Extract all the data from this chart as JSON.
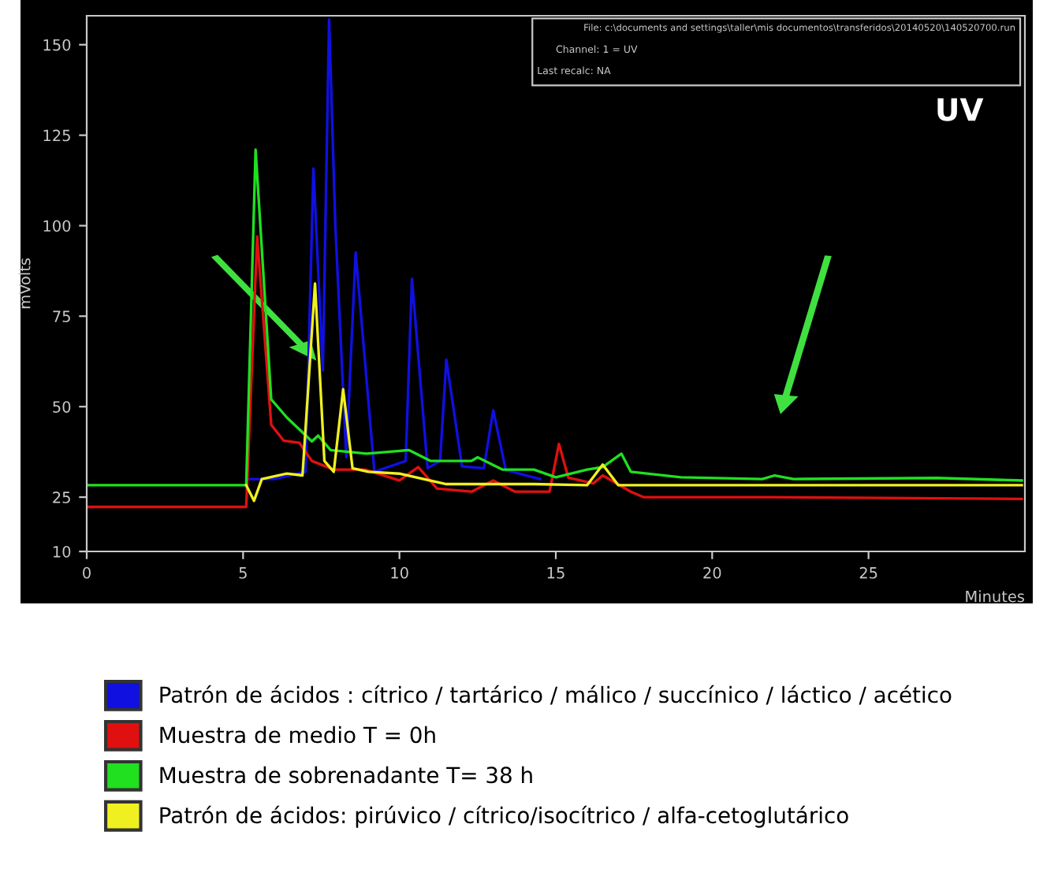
{
  "chart_data": {
    "type": "line",
    "xlabel": "Minutes",
    "ylabel": "mVolts",
    "annotations": [
      "File: c:\\documents and settings\\taller\\mis documentos\\transferidos\\20140520\\140520700.run",
      "Channel: 1 = UV",
      "Last recalc: NA",
      "UV"
    ],
    "xlim": [
      0,
      30
    ],
    "xticks": [
      0,
      5,
      10,
      15,
      20,
      25
    ],
    "ylim": [
      10,
      158
    ],
    "yticks": [
      10,
      25,
      50,
      75,
      100,
      125,
      150
    ],
    "grid": false,
    "legend": "bottom",
    "marker": "none",
    "line_style": "solid",
    "series": [
      {
        "name": "Patrón de ácidos : cítrico / tartárico / málico / succínico / láctico / acético",
        "color": "#1010e0",
        "x": [
          5.2,
          6.0,
          7.0,
          7.25,
          7.55,
          7.75,
          7.95,
          8.3,
          8.6,
          9.2,
          10.2,
          10.4,
          10.9,
          11.3,
          11.5,
          12.0,
          12.7,
          13.0,
          13.4,
          14.5
        ],
        "values": [
          30,
          30,
          32,
          115.8,
          60,
          157,
          100,
          36,
          92.6,
          32,
          35,
          85.3,
          33,
          35,
          63,
          33.5,
          33,
          49,
          32.5,
          30
        ]
      },
      {
        "name": "Muestra de medio T = 0h",
        "color": "#e01010",
        "x": [
          0,
          5.1,
          5.45,
          5.9,
          6.3,
          6.8,
          7.2,
          7.9,
          8.9,
          10.0,
          10.6,
          11.2,
          12.3,
          13.0,
          13.7,
          14.8,
          15.1,
          15.4,
          16.2,
          16.5,
          17.4,
          17.8,
          22.0,
          29.9
        ],
        "values": [
          22.3,
          22.3,
          97,
          45,
          40.6,
          40,
          35,
          32.6,
          32.6,
          29.6,
          33.3,
          27.4,
          26.5,
          29.6,
          26.5,
          26.5,
          39.7,
          30.4,
          28.8,
          31,
          26.5,
          25,
          25,
          24.5
        ]
      },
      {
        "name": "Muestra de sobrenadante T= 38 h",
        "color": "#20e020",
        "x": [
          0,
          5.1,
          5.4,
          5.9,
          6.4,
          7.2,
          7.4,
          7.8,
          8.95,
          10.3,
          11.0,
          12.3,
          12.5,
          13.3,
          14.3,
          15.0,
          16.0,
          16.5,
          17.1,
          17.4,
          19.0,
          21.6,
          22.0,
          22.6,
          27.2,
          29.9
        ],
        "values": [
          28.3,
          28.3,
          121,
          52,
          47,
          40.4,
          42,
          38,
          37,
          38,
          35,
          35,
          36,
          32.6,
          32.6,
          30.5,
          32.6,
          33.3,
          37,
          32,
          30.5,
          30,
          31,
          30,
          30.3,
          29.6
        ]
      },
      {
        "name": "Patrón de ácidos: pirúvico / cítrico/isocítrico / alfa-cetoglutárico",
        "color": "#f0f020",
        "x": [
          5.1,
          5.35,
          5.6,
          6.4,
          6.9,
          7.3,
          7.6,
          7.9,
          8.2,
          8.5,
          9.0,
          10.0,
          11.5,
          14.3,
          16.0,
          16.5,
          17.0,
          29.9
        ],
        "values": [
          28.3,
          24,
          30,
          31.5,
          31,
          84,
          35,
          32,
          54.8,
          33,
          32,
          31.5,
          28.6,
          28.6,
          28.3,
          34,
          28.3,
          28.3
        ]
      }
    ]
  }
}
